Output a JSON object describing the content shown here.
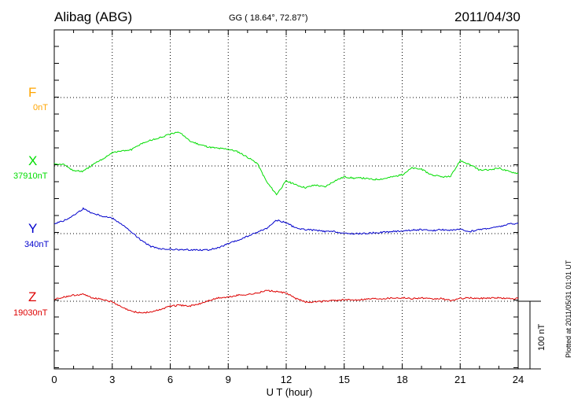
{
  "header": {
    "station": "Alibag (ABG)",
    "coords": "GG ( 18.64°,  72.87°)",
    "date": "2011/04/30"
  },
  "plotted_note": "Plotted at 2011/05/31 01:01  UT",
  "colors": {
    "F": "#FFA500",
    "X": "#00DD00",
    "Y": "#0000CC",
    "Z": "#DD0000",
    "grid": "#000000"
  },
  "components": [
    {
      "letter": "F",
      "base": "0nT"
    },
    {
      "letter": "X",
      "base": "37910nT"
    },
    {
      "letter": "Y",
      "base": "340nT"
    },
    {
      "letter": "Z",
      "base": "19030nT"
    }
  ],
  "chart_data": {
    "type": "line",
    "title": "Alibag (ABG)",
    "xlabel": "U T (hour)",
    "xlim": [
      0,
      24
    ],
    "xticks": [
      0,
      3,
      6,
      9,
      12,
      15,
      18,
      21,
      24
    ],
    "scale_bar": {
      "label": "100 nT",
      "value_nT": 100
    },
    "series": [
      {
        "name": "F",
        "baseline_label": "0nT",
        "x": [],
        "values": []
      },
      {
        "name": "X",
        "baseline_label": "37910nT",
        "x": [
          0,
          0.5,
          1.0,
          1.5,
          2.0,
          2.5,
          3.0,
          3.5,
          4.0,
          4.5,
          5.0,
          5.5,
          6.0,
          6.5,
          7.0,
          7.5,
          8.0,
          8.5,
          9.0,
          9.5,
          10.0,
          10.5,
          11.0,
          11.5,
          12.0,
          12.5,
          13.0,
          13.5,
          14.0,
          14.5,
          15.0,
          15.5,
          16.0,
          16.5,
          17.0,
          17.5,
          18.0,
          18.5,
          19.0,
          19.5,
          20.0,
          20.5,
          21.0,
          21.5,
          22.0,
          22.5,
          23.0,
          23.5,
          24.0
        ],
        "values": [
          4,
          2,
          -7,
          -8,
          2,
          10,
          20,
          22,
          24,
          33,
          38,
          42,
          47,
          50,
          37,
          32,
          28,
          26,
          25,
          21,
          13,
          4,
          -24,
          -42,
          -22,
          -28,
          -32,
          -28,
          -31,
          -22,
          -16,
          -18,
          -18,
          -20,
          -19,
          -16,
          -13,
          -3,
          -5,
          -13,
          -16,
          -16,
          8,
          2,
          -6,
          -6,
          -3,
          -8,
          -11
        ]
      },
      {
        "name": "Y",
        "baseline_label": "340nT",
        "x": [
          0,
          0.5,
          1.0,
          1.5,
          2.0,
          2.5,
          3.0,
          3.5,
          4.0,
          4.5,
          5.0,
          5.5,
          6.0,
          6.5,
          7.0,
          7.5,
          8.0,
          8.5,
          9.0,
          9.5,
          10.0,
          10.5,
          11.0,
          11.5,
          12.0,
          12.5,
          13.0,
          13.5,
          14.0,
          14.5,
          15.0,
          15.5,
          16.0,
          16.5,
          17.0,
          17.5,
          18.0,
          18.5,
          19.0,
          19.5,
          20.0,
          20.5,
          21.0,
          21.5,
          22.0,
          22.5,
          23.0,
          23.5,
          24.0
        ],
        "values": [
          15,
          19,
          27,
          37,
          30,
          26,
          23,
          14,
          2,
          -10,
          -19,
          -23,
          -23,
          -24,
          -24,
          -24,
          -24,
          -21,
          -15,
          -10,
          -4,
          2,
          8,
          20,
          16,
          8,
          6,
          5,
          3,
          3,
          0,
          0,
          0,
          1,
          2,
          3,
          4,
          5,
          6,
          4,
          6,
          5,
          6,
          3,
          6,
          8,
          10,
          14,
          15
        ]
      },
      {
        "name": "Z",
        "baseline_label": "19030nT",
        "x": [
          0,
          0.5,
          1.0,
          1.5,
          2.0,
          2.5,
          3.0,
          3.5,
          4.0,
          4.5,
          5.0,
          5.5,
          6.0,
          6.5,
          7.0,
          7.5,
          8.0,
          8.5,
          9.0,
          9.5,
          10.0,
          10.5,
          11.0,
          11.5,
          12.0,
          12.5,
          13.0,
          13.5,
          14.0,
          14.5,
          15.0,
          15.5,
          16.0,
          16.5,
          17.0,
          17.5,
          18.0,
          18.5,
          19.0,
          19.5,
          20.0,
          20.5,
          21.0,
          21.5,
          22.0,
          22.5,
          23.0,
          23.5,
          24.0
        ],
        "values": [
          3,
          6,
          9,
          10,
          5,
          3,
          -1,
          -9,
          -15,
          -17,
          -16,
          -12,
          -7,
          -6,
          -7,
          -4,
          1,
          5,
          6,
          9,
          10,
          12,
          16,
          14,
          12,
          4,
          -1,
          -1,
          0,
          1,
          2,
          2,
          3,
          4,
          4,
          5,
          5,
          4,
          5,
          3,
          4,
          1,
          4,
          5,
          4,
          5,
          5,
          4,
          4
        ]
      }
    ]
  }
}
